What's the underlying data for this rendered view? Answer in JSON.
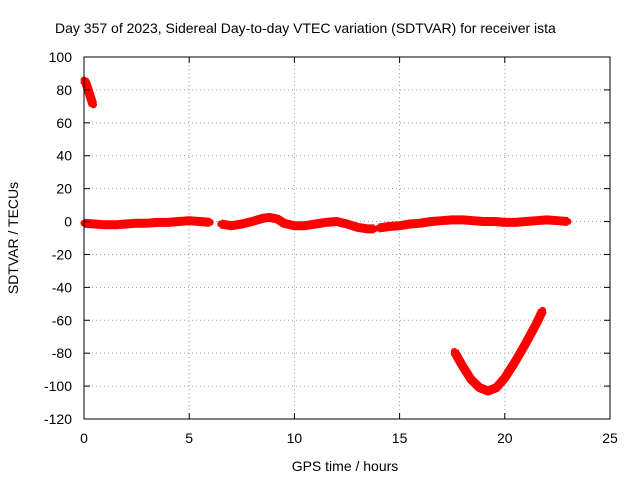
{
  "chart_data": {
    "type": "scatter",
    "title": "Day 357 of 2023, Sidereal Day-to-day VTEC variation (SDTVAR) for receiver ista",
    "xlabel": "GPS time / hours",
    "ylabel": "SDTVAR / TECUs",
    "xlim": [
      0,
      25
    ],
    "ylim": [
      -120,
      100
    ],
    "xticks": [
      0,
      5,
      10,
      15,
      20,
      25
    ],
    "yticks": [
      -120,
      -100,
      -80,
      -60,
      -40,
      -20,
      0,
      20,
      40,
      60,
      80,
      100
    ],
    "grid": true,
    "legend": "none",
    "series": [
      {
        "color": "#ff0000",
        "segments": [
          [
            [
              0.0,
              86
            ],
            [
              0.1,
              84
            ],
            [
              0.2,
              80
            ],
            [
              0.3,
              76
            ],
            [
              0.4,
              72
            ],
            [
              0.45,
              71
            ]
          ],
          [
            [
              0.0,
              -1
            ],
            [
              0.5,
              -1.5
            ],
            [
              1.0,
              -2
            ],
            [
              1.5,
              -2
            ],
            [
              2.0,
              -1.5
            ],
            [
              2.5,
              -1
            ],
            [
              3.0,
              -1
            ],
            [
              3.5,
              -0.5
            ],
            [
              4.0,
              -0.5
            ],
            [
              4.5,
              0
            ],
            [
              5.0,
              0.5
            ],
            [
              5.5,
              0
            ],
            [
              6.0,
              -0.5
            ]
          ],
          [
            [
              6.5,
              -1.5
            ],
            [
              7.0,
              -2.5
            ],
            [
              7.5,
              -1.5
            ],
            [
              8.0,
              0
            ],
            [
              8.5,
              2
            ],
            [
              8.8,
              2.5
            ],
            [
              9.2,
              1.5
            ],
            [
              9.5,
              -1
            ],
            [
              10.0,
              -2.5
            ],
            [
              10.5,
              -2.5
            ],
            [
              11.0,
              -1.5
            ],
            [
              11.5,
              -0.5
            ],
            [
              12.0,
              0
            ],
            [
              12.5,
              -1.5
            ],
            [
              13.0,
              -3.5
            ],
            [
              13.5,
              -4.5
            ],
            [
              13.8,
              -4.5
            ]
          ],
          [
            [
              14.0,
              -4
            ],
            [
              14.5,
              -3
            ],
            [
              15.0,
              -2.5
            ],
            [
              15.5,
              -1.5
            ],
            [
              16.0,
              -1
            ],
            [
              16.5,
              0
            ],
            [
              17.0,
              0.5
            ],
            [
              17.5,
              1
            ],
            [
              18.0,
              1
            ],
            [
              18.5,
              0.5
            ],
            [
              19.0,
              0
            ],
            [
              19.5,
              0
            ],
            [
              20.0,
              -0.5
            ],
            [
              20.5,
              -0.5
            ],
            [
              21.0,
              0
            ],
            [
              21.5,
              0.5
            ],
            [
              22.0,
              1
            ],
            [
              22.5,
              0.5
            ],
            [
              23.0,
              0
            ]
          ],
          [
            [
              17.6,
              -79
            ],
            [
              18.0,
              -88
            ],
            [
              18.4,
              -96
            ],
            [
              18.8,
              -101
            ],
            [
              19.2,
              -103
            ],
            [
              19.6,
              -101
            ],
            [
              20.0,
              -95
            ],
            [
              20.5,
              -85
            ],
            [
              21.0,
              -74
            ],
            [
              21.5,
              -62
            ],
            [
              21.8,
              -54
            ]
          ]
        ]
      }
    ]
  }
}
